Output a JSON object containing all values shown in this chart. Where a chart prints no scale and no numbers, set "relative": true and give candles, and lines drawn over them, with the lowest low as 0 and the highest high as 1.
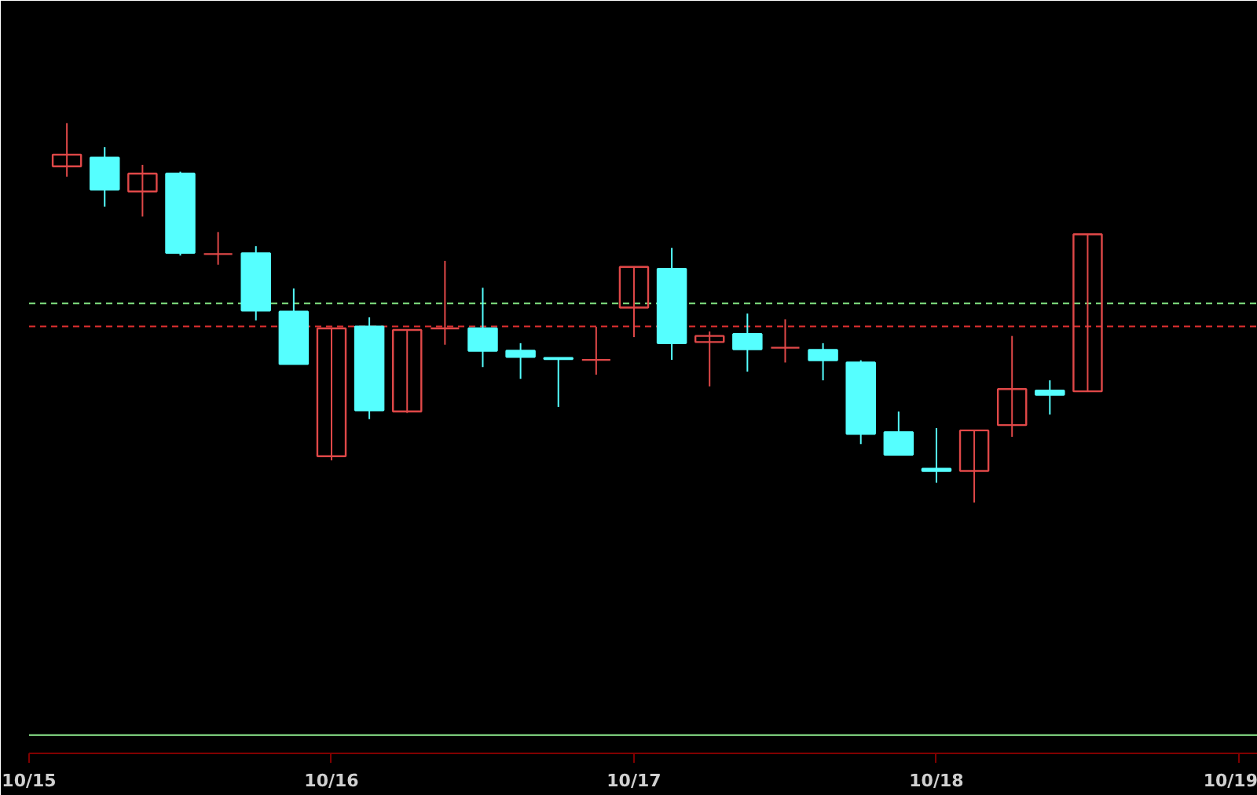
{
  "chart_data": {
    "type": "candlestick",
    "relative": true,
    "categories": [
      "10/15",
      null,
      null,
      null,
      null,
      null,
      null,
      null,
      "10/16",
      null,
      null,
      null,
      null,
      null,
      null,
      null,
      "10/17",
      null,
      null,
      null,
      null,
      null,
      null,
      null,
      "10/18",
      null,
      null,
      null,
      null,
      null,
      null,
      null,
      "10/19"
    ],
    "ohlc": [
      null,
      [
        0.886,
        1,
        0.859,
        0.917
      ],
      [
        0.909,
        0.937,
        0.78,
        0.825
      ],
      [
        0.82,
        0.89,
        0.754,
        0.867
      ],
      [
        0.867,
        0.872,
        0.651,
        0.658
      ],
      [
        0.655,
        0.713,
        0.627,
        0.655
      ],
      [
        0.657,
        0.676,
        0.48,
        0.506
      ],
      [
        0.503,
        0.564,
        0.365,
        0.365
      ],
      [
        0.122,
        0.459,
        0.111,
        0.459
      ],
      [
        0.464,
        0.488,
        0.22,
        0.243
      ],
      [
        0.24,
        0.455,
        0.236,
        0.455
      ],
      [
        0.459,
        0.637,
        0.416,
        0.459
      ],
      [
        0.459,
        0.566,
        0.357,
        0.4
      ],
      [
        0.4,
        0.42,
        0.326,
        0.384
      ],
      [
        0.381,
        0.381,
        0.252,
        0.378
      ],
      [
        0.376,
        0.463,
        0.337,
        0.376
      ],
      [
        0.514,
        0.621,
        0.436,
        0.621
      ],
      [
        0.616,
        0.671,
        0.376,
        0.42
      ],
      [
        0.423,
        0.451,
        0.306,
        0.439
      ],
      [
        0.444,
        0.498,
        0.345,
        0.404
      ],
      [
        0.408,
        0.483,
        0.369,
        0.408
      ],
      [
        0.402,
        0.42,
        0.322,
        0.375
      ],
      [
        0.369,
        0.375,
        0.154,
        0.181
      ],
      [
        0.185,
        0.24,
        0.126,
        0.126
      ],
      [
        0.089,
        0.196,
        0.052,
        0.083
      ],
      [
        0.083,
        0.19,
        0,
        0.19
      ],
      [
        0.204,
        0.439,
        0.173,
        0.299
      ],
      [
        0.295,
        0.322,
        0.232,
        0.284
      ],
      [
        0.293,
        0.707,
        0.293,
        0.707
      ],
      null,
      null,
      null,
      null
    ],
    "colors": [
      null,
      "#e04848",
      "#55ffff",
      "#e04848",
      "#55ffff",
      "#e04848",
      "#55ffff",
      "#55ffff",
      "#e04848",
      "#55ffff",
      "#e04848",
      "#e04848",
      "#55ffff",
      "#55ffff",
      "#55ffff",
      "#e04848",
      "#e04848",
      "#55ffff",
      "#e04848",
      "#55ffff",
      "#e04848",
      "#55ffff",
      "#55ffff",
      "#55ffff",
      "#55ffff",
      "#e04848",
      "#e04848",
      "#55ffff",
      "#e04848",
      null,
      null,
      null,
      null
    ],
    "ref_lines": [
      {
        "axis": "y",
        "value": 0.525,
        "color": "#80e080",
        "line_style": "dashed"
      },
      {
        "axis": "y",
        "value": 0.464,
        "color": "#e03030",
        "line_style": "dashed"
      },
      {
        "axis": "y",
        "value": -0.613,
        "color": "#90ee90",
        "line_style": "solid"
      }
    ]
  }
}
